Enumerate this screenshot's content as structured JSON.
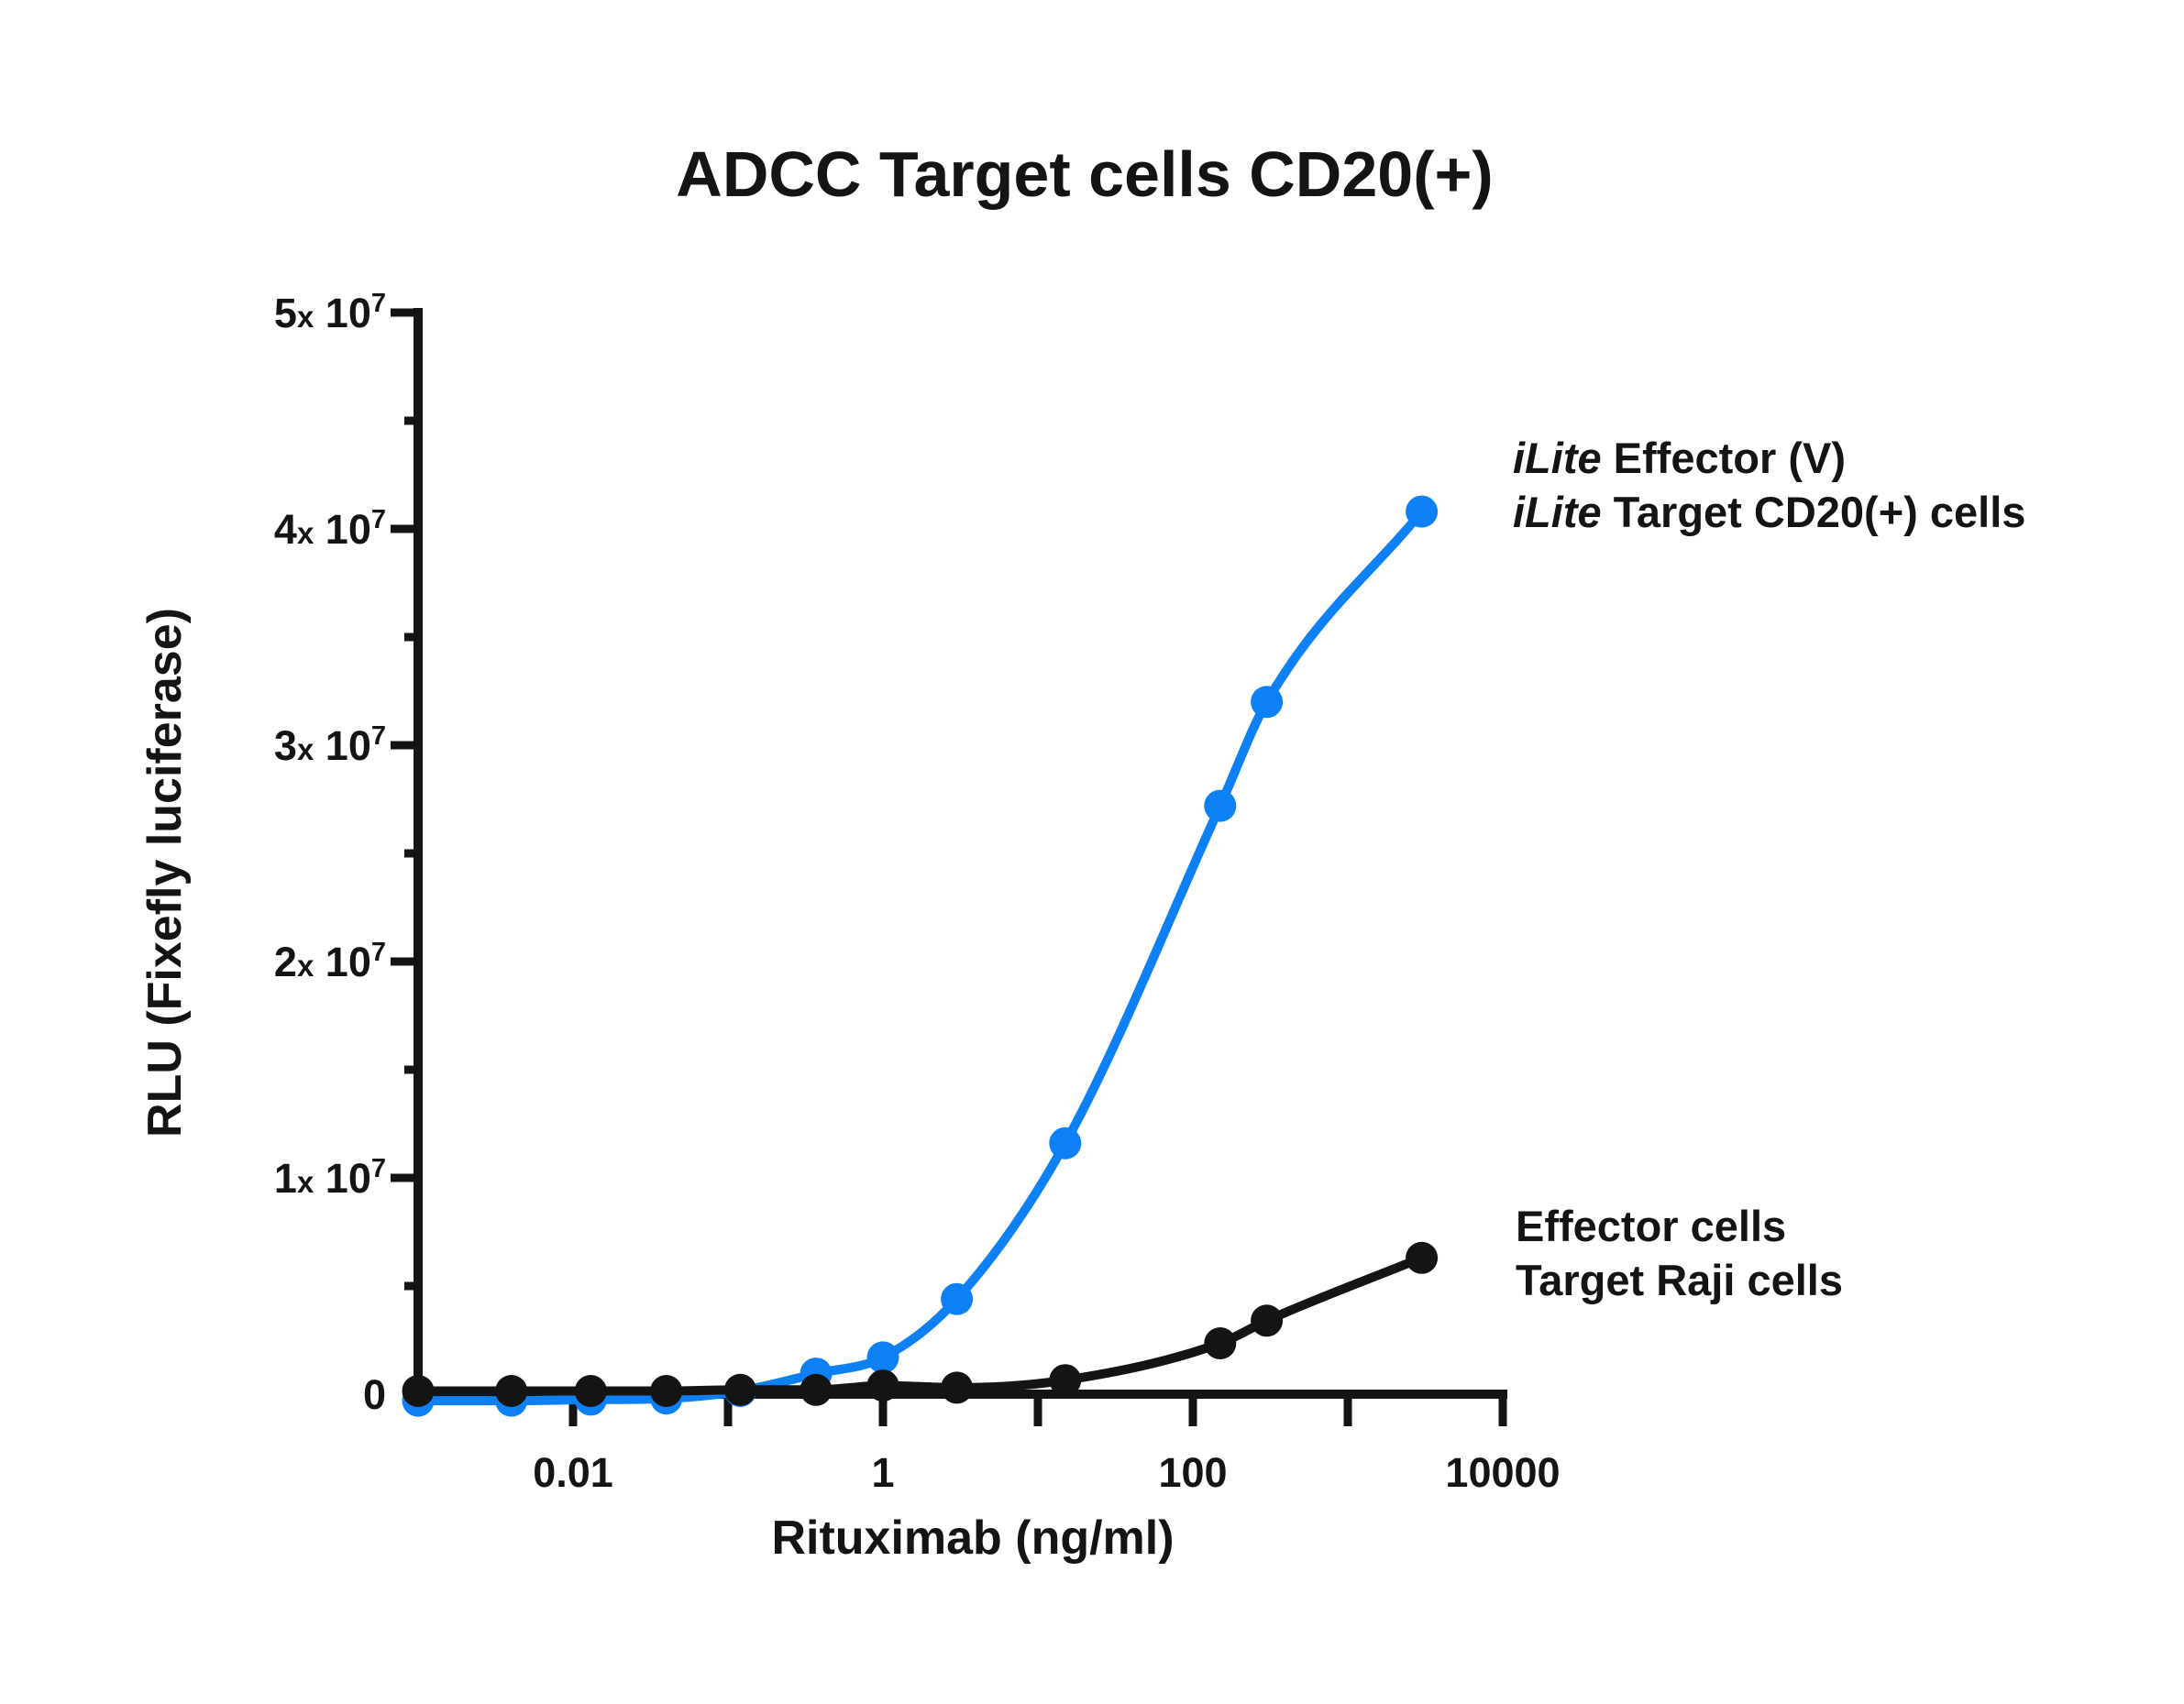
{
  "title": "ADCC Target cells CD20(+)",
  "y_axis": {
    "label": "RLU (Fixefly luciferase)",
    "ticks": [
      {
        "value_e7": 0,
        "mantissa": "0",
        "times": "",
        "base": "",
        "exponent": ""
      },
      {
        "value_e7": 1,
        "mantissa": "1",
        "times": "x",
        "base": " 10",
        "exponent": "7"
      },
      {
        "value_e7": 2,
        "mantissa": "2",
        "times": "x",
        "base": " 10",
        "exponent": "7"
      },
      {
        "value_e7": 3,
        "mantissa": "3",
        "times": "x",
        "base": " 10",
        "exponent": "7"
      },
      {
        "value_e7": 4,
        "mantissa": "4",
        "times": "x",
        "base": " 10",
        "exponent": "7"
      },
      {
        "value_e7": 5,
        "mantissa": "5",
        "times": "x",
        "base": " 10",
        "exponent": "7"
      }
    ],
    "minor_ticks_e7": [
      0.5,
      1.5,
      2.5,
      3.5,
      4.5
    ]
  },
  "x_axis": {
    "label": "Rituximab (ng/ml)",
    "scale": "log10",
    "tick_decades": [
      -2,
      -1,
      0,
      1,
      2,
      3,
      4
    ],
    "labeled_ticks": [
      {
        "decade": -2,
        "label": "0.01"
      },
      {
        "decade": 0,
        "label": "1"
      },
      {
        "decade": 2,
        "label": "100"
      },
      {
        "decade": 4,
        "label": "10000"
      }
    ]
  },
  "legends": {
    "top": {
      "lines": [
        {
          "italic": "iLite",
          "rest": " Effector (V)"
        },
        {
          "italic": "iLite",
          "rest": " Target CD20(+) cells"
        }
      ]
    },
    "bottom": {
      "lines": [
        {
          "italic": "",
          "rest": "Effector cells"
        },
        {
          "italic": "",
          "rest": "Target Raji cells"
        }
      ]
    }
  },
  "colors": {
    "blue": "#0e80f6",
    "black": "#141414",
    "background": "#ffffff"
  },
  "chart_data": {
    "type": "line",
    "title": "ADCC Target cells CD20(+)",
    "xlabel": "Rituximab (ng/ml)",
    "ylabel": "RLU (Fixefly luciferase)",
    "x_scale": "log",
    "xlim_ng_ml": [
      0.001,
      10000
    ],
    "ylim_rlu": [
      0,
      50000000
    ],
    "x_ticks_labeled": [
      0.01,
      1,
      100,
      10000
    ],
    "grid": false,
    "x_ng_ml": [
      0.001,
      0.004,
      0.013,
      0.04,
      0.12,
      0.37,
      1,
      3,
      15,
      150,
      300,
      3000
    ],
    "series": [
      {
        "name": "iLite Effector (V) / iLite Target CD20(+) cells",
        "color": "#0e80f6",
        "marker": "circle",
        "rlu_e6": [
          -0.3,
          -0.3,
          -0.25,
          -0.2,
          0.15,
          0.95,
          1.7,
          4.4,
          11.6,
          27.2,
          32.0,
          40.8
        ]
      },
      {
        "name": "Effector cells / Target Raji cells",
        "color": "#141414",
        "marker": "circle",
        "rlu_e6": [
          0.15,
          0.15,
          0.15,
          0.15,
          0.2,
          0.2,
          0.4,
          0.3,
          0.65,
          2.35,
          3.4,
          6.3
        ]
      }
    ]
  }
}
